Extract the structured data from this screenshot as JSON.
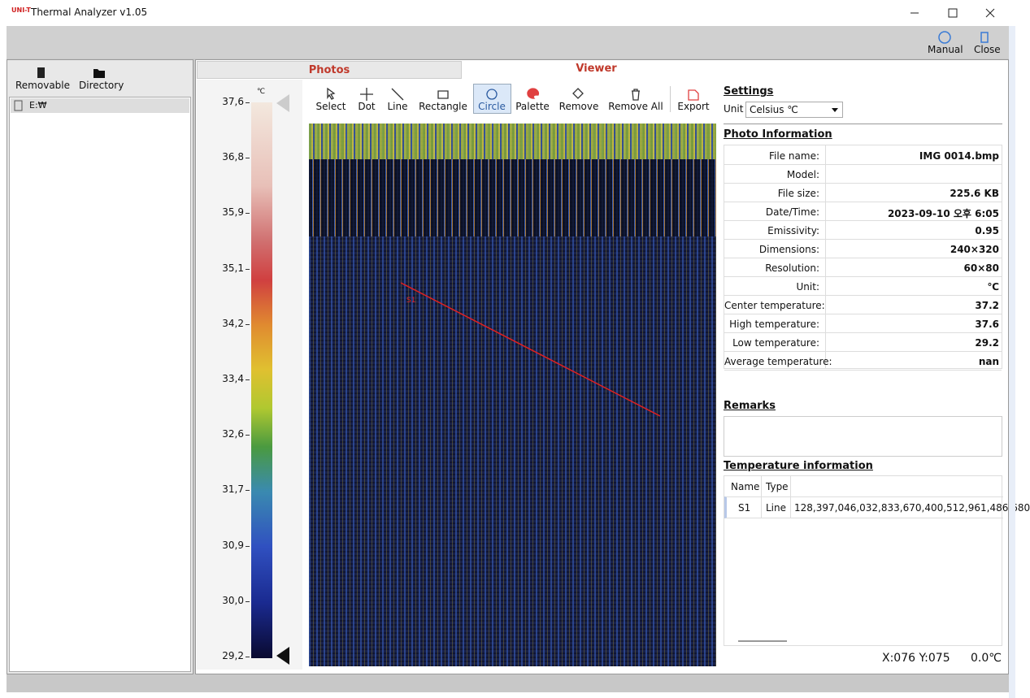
{
  "window": {
    "logo": "UNI-T",
    "title": "Thermal Analyzer v1.05"
  },
  "toolbar": {
    "manual": "Manual",
    "close": "Close"
  },
  "sidebar": {
    "buttons": [
      "Removable",
      "Directory"
    ],
    "tree": [
      "E:₩"
    ]
  },
  "tabs": [
    "Photos",
    "Viewer"
  ],
  "scale": {
    "unit": "℃",
    "labels": [
      "37,6",
      "36,8",
      "35,9",
      "35,1",
      "34,2",
      "33,4",
      "32,6",
      "31,7",
      "30,9",
      "30,0",
      "29,2"
    ]
  },
  "tools": [
    "Select",
    "Dot",
    "Line",
    "Rectangle",
    "Circle",
    "Palette",
    "Remove",
    "Remove All",
    "Export"
  ],
  "settings": {
    "title": "Settings",
    "unit_label": "Unit",
    "unit_value": "Celsius ℃"
  },
  "photo_info": {
    "title": "Photo Information",
    "rows": [
      [
        "File name:",
        "IMG 0014.bmp"
      ],
      [
        "Model:",
        null
      ],
      [
        "File size:",
        "225.6 KB"
      ],
      [
        "Date/Time:",
        "2023-09-10 오후 6:05"
      ],
      [
        "Emissivity:",
        "0.95"
      ],
      [
        "Dimensions:",
        "240×320"
      ],
      [
        "Resolution:",
        "60×80"
      ],
      [
        "Unit:",
        "℃"
      ],
      [
        "Center temperature:",
        "37.2"
      ],
      [
        "High temperature:",
        "37.6"
      ],
      [
        "Low temperature:",
        "29.2"
      ],
      [
        "Average temperature:",
        "nan"
      ]
    ]
  },
  "remarks": {
    "title": "Remarks"
  },
  "temperature_info": {
    "title": "Temperature information",
    "columns": [
      "Name",
      "Type"
    ],
    "rows": [
      [
        "S1",
        "Line",
        "128,397,046,032,833,670,400,512,961,486,680"
      ]
    ]
  },
  "status": {
    "position": "X:076 Y:075",
    "temperature": "0.0℃"
  }
}
